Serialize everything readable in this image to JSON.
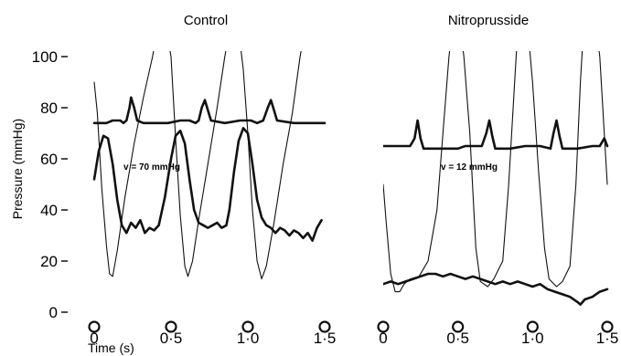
{
  "chart_data": [
    {
      "type": "line",
      "title": "Control",
      "xlabel": "Time (s)",
      "ylabel": "Pressure (mmHg)",
      "xlim": [
        0,
        1.5
      ],
      "ylim": [
        0,
        100
      ],
      "x_ticks": [
        "0",
        "0·5",
        "1·0",
        "1·5"
      ],
      "y_ticks": [
        "0",
        "20",
        "40",
        "60",
        "80",
        "100"
      ],
      "annotation": "v = 70 mmHg",
      "grid": false,
      "series": [
        {
          "style": "thick",
          "points": [
            [
              0,
              74
            ],
            [
              0.08,
              74
            ],
            [
              0.12,
              75
            ],
            [
              0.15,
              75
            ],
            [
              0.17,
              75
            ],
            [
              0.19,
              74
            ],
            [
              0.21,
              75
            ],
            [
              0.23,
              80
            ],
            [
              0.24,
              84
            ],
            [
              0.26,
              80
            ],
            [
              0.28,
              75
            ],
            [
              0.32,
              74
            ],
            [
              0.4,
              74
            ],
            [
              0.48,
              74
            ],
            [
              0.56,
              75
            ],
            [
              0.62,
              75
            ],
            [
              0.66,
              74
            ],
            [
              0.68,
              75
            ],
            [
              0.7,
              80
            ],
            [
              0.72,
              83
            ],
            [
              0.74,
              79
            ],
            [
              0.76,
              75
            ],
            [
              0.85,
              74
            ],
            [
              0.95,
              75
            ],
            [
              1.02,
              75
            ],
            [
              1.06,
              74
            ],
            [
              1.1,
              75
            ],
            [
              1.13,
              80
            ],
            [
              1.15,
              83
            ],
            [
              1.17,
              79
            ],
            [
              1.19,
              75
            ],
            [
              1.3,
              74
            ],
            [
              1.4,
              74
            ],
            [
              1.5,
              74
            ]
          ]
        },
        {
          "style": "thick",
          "points": [
            [
              0,
              52
            ],
            [
              0.03,
              63
            ],
            [
              0.06,
              69
            ],
            [
              0.09,
              68
            ],
            [
              0.12,
              58
            ],
            [
              0.15,
              44
            ],
            [
              0.18,
              34
            ],
            [
              0.21,
              31
            ],
            [
              0.24,
              35
            ],
            [
              0.27,
              33
            ],
            [
              0.3,
              36
            ],
            [
              0.33,
              31
            ],
            [
              0.36,
              33
            ],
            [
              0.39,
              32
            ],
            [
              0.42,
              34
            ],
            [
              0.46,
              45
            ],
            [
              0.5,
              60
            ],
            [
              0.53,
              69
            ],
            [
              0.56,
              71
            ],
            [
              0.59,
              66
            ],
            [
              0.62,
              52
            ],
            [
              0.65,
              40
            ],
            [
              0.68,
              35
            ],
            [
              0.71,
              34
            ],
            [
              0.74,
              33
            ],
            [
              0.77,
              34
            ],
            [
              0.8,
              35
            ],
            [
              0.83,
              33
            ],
            [
              0.86,
              34
            ],
            [
              0.88,
              40
            ],
            [
              0.91,
              55
            ],
            [
              0.94,
              67
            ],
            [
              0.97,
              72
            ],
            [
              1.0,
              70
            ],
            [
              1.03,
              58
            ],
            [
              1.06,
              44
            ],
            [
              1.09,
              37
            ],
            [
              1.12,
              34
            ],
            [
              1.15,
              33
            ],
            [
              1.18,
              31
            ],
            [
              1.21,
              33
            ],
            [
              1.24,
              32
            ],
            [
              1.27,
              30
            ],
            [
              1.3,
              32
            ],
            [
              1.33,
              31
            ],
            [
              1.36,
              29
            ],
            [
              1.39,
              31
            ],
            [
              1.42,
              28
            ],
            [
              1.45,
              33
            ],
            [
              1.48,
              36
            ]
          ]
        },
        {
          "style": "thin",
          "points": [
            [
              0,
              90
            ],
            [
              0.02,
              78
            ],
            [
              0.05,
              48
            ],
            [
              0.08,
              26
            ],
            [
              0.1,
              15
            ],
            [
              0.12,
              14
            ],
            [
              0.15,
              24
            ],
            [
              0.2,
              45
            ],
            [
              0.26,
              66
            ],
            [
              0.32,
              84
            ],
            [
              0.38,
              100
            ],
            [
              0.41,
              110
            ],
            [
              0.47,
              110
            ],
            [
              0.5,
              100
            ],
            [
              0.53,
              68
            ],
            [
              0.56,
              38
            ],
            [
              0.59,
              18
            ],
            [
              0.61,
              14
            ],
            [
              0.64,
              20
            ],
            [
              0.68,
              36
            ],
            [
              0.74,
              58
            ],
            [
              0.8,
              80
            ],
            [
              0.85,
              100
            ],
            [
              0.88,
              110
            ],
            [
              0.94,
              110
            ],
            [
              0.97,
              95
            ],
            [
              1.0,
              70
            ],
            [
              1.03,
              40
            ],
            [
              1.06,
              20
            ],
            [
              1.09,
              13
            ],
            [
              1.12,
              18
            ],
            [
              1.17,
              35
            ],
            [
              1.23,
              58
            ],
            [
              1.29,
              78
            ],
            [
              1.34,
              100
            ],
            [
              1.37,
              110
            ]
          ]
        }
      ]
    },
    {
      "type": "line",
      "title": "Nitroprusside",
      "xlabel": "",
      "ylabel": "",
      "xlim": [
        0,
        1.5
      ],
      "ylim": [
        0,
        100
      ],
      "x_ticks": [
        "0",
        "0·5",
        "1·0",
        "1·5"
      ],
      "annotation": "v = 12 mmHg",
      "grid": false,
      "series": [
        {
          "style": "thick",
          "points": [
            [
              0,
              65
            ],
            [
              0.1,
              65
            ],
            [
              0.18,
              65
            ],
            [
              0.21,
              68
            ],
            [
              0.23,
              75
            ],
            [
              0.25,
              68
            ],
            [
              0.27,
              64
            ],
            [
              0.4,
              64
            ],
            [
              0.5,
              64
            ],
            [
              0.55,
              65
            ],
            [
              0.62,
              65
            ],
            [
              0.66,
              65
            ],
            [
              0.69,
              70
            ],
            [
              0.71,
              75
            ],
            [
              0.73,
              69
            ],
            [
              0.75,
              64
            ],
            [
              0.85,
              64
            ],
            [
              0.95,
              65
            ],
            [
              1.05,
              65
            ],
            [
              1.12,
              64
            ],
            [
              1.14,
              70
            ],
            [
              1.16,
              75
            ],
            [
              1.18,
              69
            ],
            [
              1.2,
              64
            ],
            [
              1.3,
              64
            ],
            [
              1.4,
              65
            ],
            [
              1.45,
              65
            ],
            [
              1.48,
              68
            ],
            [
              1.5,
              65
            ]
          ]
        },
        {
          "style": "thick",
          "points": [
            [
              0,
              11
            ],
            [
              0.05,
              12
            ],
            [
              0.1,
              11
            ],
            [
              0.15,
              12
            ],
            [
              0.2,
              13
            ],
            [
              0.25,
              14
            ],
            [
              0.3,
              15
            ],
            [
              0.35,
              15
            ],
            [
              0.4,
              14
            ],
            [
              0.45,
              15
            ],
            [
              0.5,
              14
            ],
            [
              0.55,
              13
            ],
            [
              0.6,
              14
            ],
            [
              0.65,
              13
            ],
            [
              0.7,
              12
            ],
            [
              0.75,
              11
            ],
            [
              0.8,
              12
            ],
            [
              0.85,
              11
            ],
            [
              0.9,
              12
            ],
            [
              0.95,
              11
            ],
            [
              1.0,
              10
            ],
            [
              1.05,
              11
            ],
            [
              1.1,
              9
            ],
            [
              1.15,
              8
            ],
            [
              1.2,
              7
            ],
            [
              1.25,
              6
            ],
            [
              1.3,
              4
            ],
            [
              1.32,
              3
            ],
            [
              1.35,
              5
            ],
            [
              1.4,
              6
            ],
            [
              1.45,
              8
            ],
            [
              1.5,
              9
            ]
          ]
        },
        {
          "style": "thin",
          "points": [
            [
              0,
              50
            ],
            [
              0.02,
              35
            ],
            [
              0.05,
              15
            ],
            [
              0.08,
              8
            ],
            [
              0.11,
              8
            ],
            [
              0.14,
              11
            ],
            [
              0.18,
              13
            ],
            [
              0.24,
              14
            ],
            [
              0.3,
              20
            ],
            [
              0.36,
              40
            ],
            [
              0.4,
              70
            ],
            [
              0.44,
              100
            ],
            [
              0.46,
              110
            ],
            [
              0.52,
              110
            ],
            [
              0.54,
              100
            ],
            [
              0.58,
              70
            ],
            [
              0.62,
              25
            ],
            [
              0.65,
              12
            ],
            [
              0.7,
              10
            ],
            [
              0.74,
              13
            ],
            [
              0.8,
              20
            ],
            [
              0.84,
              50
            ],
            [
              0.88,
              90
            ],
            [
              0.9,
              110
            ],
            [
              0.97,
              110
            ],
            [
              1.0,
              90
            ],
            [
              1.04,
              55
            ],
            [
              1.08,
              25
            ],
            [
              1.11,
              13
            ],
            [
              1.16,
              10
            ],
            [
              1.2,
              12
            ],
            [
              1.25,
              18
            ],
            [
              1.29,
              50
            ],
            [
              1.32,
              90
            ],
            [
              1.34,
              110
            ],
            [
              1.43,
              110
            ],
            [
              1.45,
              100
            ],
            [
              1.48,
              70
            ],
            [
              1.5,
              50
            ]
          ]
        }
      ]
    }
  ]
}
